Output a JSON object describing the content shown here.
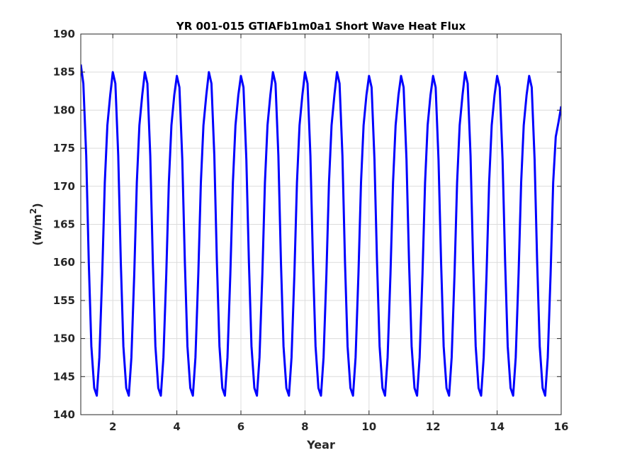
{
  "chart_data": {
    "type": "line",
    "title": "YR 001-015 GTIAFb1m0a1 Short Wave Heat Flux",
    "xlabel": "Year",
    "ylabel": "(w/m",
    "ylabel_sup": "2",
    "ylabel_close": ")",
    "xlim": [
      1,
      16
    ],
    "ylim": [
      140,
      190
    ],
    "xticks": [
      2,
      4,
      6,
      8,
      10,
      12,
      14,
      16
    ],
    "yticks": [
      140,
      145,
      150,
      155,
      160,
      165,
      170,
      175,
      180,
      185,
      190
    ],
    "grid": true,
    "series_color": "#0000ff",
    "series": [
      {
        "x": [
          1.0,
          1.08,
          1.17,
          1.25,
          1.33,
          1.42,
          1.5,
          1.58,
          1.67,
          1.75,
          1.83,
          1.92,
          2.0,
          2.08,
          2.17,
          2.25,
          2.33,
          2.42,
          2.5,
          2.58,
          2.67,
          2.75,
          2.83,
          2.92,
          3.0,
          3.08,
          3.17,
          3.25,
          3.33,
          3.42,
          3.5,
          3.58,
          3.67,
          3.75,
          3.83,
          3.92,
          4.0,
          4.08,
          4.17,
          4.25,
          4.33,
          4.42,
          4.5,
          4.58,
          4.67,
          4.75,
          4.83,
          4.92,
          5.0,
          5.08,
          5.17,
          5.25,
          5.33,
          5.42,
          5.5,
          5.58,
          5.67,
          5.75,
          5.83,
          5.92,
          6.0,
          6.08,
          6.17,
          6.25,
          6.33,
          6.42,
          6.5,
          6.58,
          6.67,
          6.75,
          6.83,
          6.92,
          7.0,
          7.08,
          7.17,
          7.25,
          7.33,
          7.42,
          7.5,
          7.58,
          7.67,
          7.75,
          7.83,
          7.92,
          8.0,
          8.08,
          8.17,
          8.25,
          8.33,
          8.42,
          8.5,
          8.58,
          8.67,
          8.75,
          8.83,
          8.92,
          9.0,
          9.08,
          9.17,
          9.25,
          9.33,
          9.42,
          9.5,
          9.58,
          9.67,
          9.75,
          9.83,
          9.92,
          10.0,
          10.08,
          10.17,
          10.25,
          10.33,
          10.42,
          10.5,
          10.58,
          10.67,
          10.75,
          10.83,
          10.92,
          11.0,
          11.08,
          11.17,
          11.25,
          11.33,
          11.42,
          11.5,
          11.58,
          11.67,
          11.75,
          11.83,
          11.92,
          12.0,
          12.08,
          12.17,
          12.25,
          12.33,
          12.42,
          12.5,
          12.58,
          12.67,
          12.75,
          12.83,
          12.92,
          13.0,
          13.08,
          13.17,
          13.25,
          13.33,
          13.42,
          13.5,
          13.58,
          13.67,
          13.75,
          13.83,
          13.92,
          14.0,
          14.08,
          14.17,
          14.25,
          14.33,
          14.42,
          14.5,
          14.58,
          14.67,
          14.75,
          14.83,
          14.92,
          15.0,
          15.08,
          15.17,
          15.25,
          15.33,
          15.42,
          15.5,
          15.58,
          15.67,
          15.75,
          15.83,
          15.92,
          16.0
        ],
        "y": [
          186.0,
          183.5,
          174.0,
          160.0,
          149.0,
          143.5,
          142.5,
          147.5,
          158.5,
          170.5,
          178.0,
          182.0,
          185.0,
          183.5,
          174.0,
          160.0,
          149.0,
          143.5,
          142.5,
          147.5,
          158.5,
          170.5,
          178.0,
          182.0,
          185.0,
          183.5,
          174.0,
          160.0,
          149.0,
          143.5,
          142.5,
          147.5,
          158.5,
          170.5,
          178.0,
          182.0,
          184.5,
          183.0,
          173.5,
          160.0,
          149.0,
          143.5,
          142.5,
          147.5,
          158.5,
          170.5,
          178.0,
          182.0,
          185.0,
          183.5,
          174.0,
          160.0,
          149.0,
          143.5,
          142.5,
          147.5,
          158.5,
          170.5,
          178.0,
          182.0,
          184.5,
          183.0,
          173.5,
          160.0,
          149.0,
          143.5,
          142.5,
          147.5,
          158.5,
          170.5,
          178.0,
          182.0,
          185.0,
          183.5,
          174.0,
          160.0,
          149.0,
          143.5,
          142.5,
          147.5,
          158.5,
          170.5,
          178.0,
          182.0,
          185.0,
          183.5,
          174.0,
          160.0,
          149.0,
          143.5,
          142.5,
          147.5,
          158.5,
          170.5,
          178.0,
          182.0,
          185.0,
          183.5,
          174.0,
          160.0,
          149.0,
          143.5,
          142.5,
          147.5,
          158.5,
          170.5,
          178.0,
          182.0,
          184.5,
          183.0,
          173.5,
          160.0,
          149.0,
          143.5,
          142.5,
          147.5,
          158.5,
          170.5,
          178.0,
          182.0,
          184.5,
          183.0,
          173.5,
          160.0,
          149.0,
          143.5,
          142.5,
          147.5,
          158.5,
          170.5,
          178.0,
          182.0,
          184.5,
          183.0,
          173.5,
          160.0,
          149.0,
          143.5,
          142.5,
          147.5,
          158.5,
          170.5,
          178.0,
          182.0,
          185.0,
          183.5,
          174.0,
          160.0,
          149.0,
          143.5,
          142.5,
          147.5,
          158.5,
          170.5,
          178.0,
          182.0,
          184.5,
          183.0,
          173.5,
          160.0,
          149.0,
          143.5,
          142.5,
          147.5,
          158.5,
          170.5,
          178.0,
          182.0,
          184.5,
          183.0,
          173.5,
          160.0,
          149.0,
          143.5,
          142.5,
          147.5,
          158.5,
          170.5,
          176.5,
          178.5,
          180.5
        ]
      }
    ]
  }
}
